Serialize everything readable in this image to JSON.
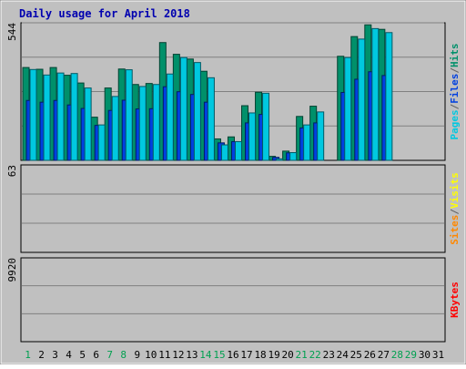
{
  "chart_data": {
    "title": "Daily usage for April 2018",
    "days": [
      "1",
      "2",
      "3",
      "4",
      "5",
      "6",
      "7",
      "8",
      "9",
      "10",
      "11",
      "12",
      "13",
      "14",
      "15",
      "16",
      "17",
      "18",
      "19",
      "20",
      "21",
      "22",
      "23",
      "24",
      "25",
      "26",
      "27",
      "28",
      "29",
      "30",
      "31"
    ],
    "weekend_days": [
      "1",
      "7",
      "8",
      "14",
      "15",
      "21",
      "22",
      "28",
      "29"
    ],
    "panels": [
      {
        "type": "bar",
        "max_label": "544",
        "max": 544,
        "legend": [
          "Pages",
          "Files",
          "Hits"
        ],
        "legend_colors": [
          "#00c8e0",
          "#0040e0",
          "#00906a"
        ],
        "series": [
          {
            "name": "Hits",
            "color": "#00906a",
            "values": [
              372,
              365,
              372,
              341,
              310,
              173,
              290,
              366,
              304,
              308,
              472,
              425,
              406,
              357,
              86,
              94,
              219,
              273,
              16,
              37,
              176,
              217,
              0,
              417,
              496,
              543,
              525,
              0,
              0,
              0,
              0
            ]
          },
          {
            "name": "Files",
            "color": "#0040e0",
            "values": [
              240,
              233,
              240,
              222,
              208,
              140,
              200,
              241,
              206,
              207,
              295,
              275,
              264,
              233,
              70,
              75,
              150,
              184,
              12,
              30,
              130,
              150,
              0,
              272,
              325,
              355,
              340,
              0,
              0,
              0,
              0
            ]
          },
          {
            "name": "Pages",
            "color": "#00c8e0",
            "values": [
              364,
              342,
              350,
              348,
              290,
              142,
              256,
              363,
              296,
              304,
              346,
              412,
              392,
              331,
              62,
              75,
              190,
              269,
              6,
              31,
              142,
              194,
              0,
              412,
              486,
              528,
              512,
              0,
              0,
              0,
              0
            ]
          }
        ]
      },
      {
        "type": "bar",
        "max_label": "63",
        "max": 63,
        "legend": [
          "Sites",
          "/",
          "Visits"
        ],
        "legend_colors": [
          "#ff8800",
          "#606060",
          "#ffff00"
        ],
        "series": [
          {
            "name": "Visits",
            "color": "#ffff00",
            "values": [
              0,
              0,
              0,
              0,
              0,
              0,
              0,
              0,
              0,
              0,
              0,
              0,
              0,
              0,
              0,
              0,
              0,
              0,
              0,
              0,
              0,
              0,
              0,
              0,
              0,
              0,
              0,
              0,
              0,
              0,
              0
            ]
          },
          {
            "name": "Sites",
            "color": "#ff8800",
            "values": [
              0,
              0,
              0,
              0,
              0,
              0,
              0,
              0,
              0,
              0,
              0,
              0,
              0,
              0,
              0,
              0,
              0,
              0,
              0,
              0,
              0,
              0,
              0,
              0,
              0,
              0,
              0,
              0,
              0,
              0,
              0
            ]
          }
        ]
      },
      {
        "type": "bar",
        "max_label": "9920",
        "max": 9920,
        "legend": [
          "KBytes"
        ],
        "legend_colors": [
          "#ff0000"
        ],
        "series": [
          {
            "name": "KBytes",
            "color": "#ff0000",
            "values": [
              0,
              0,
              0,
              0,
              0,
              0,
              0,
              0,
              0,
              0,
              0,
              0,
              0,
              0,
              0,
              0,
              0,
              0,
              0,
              0,
              0,
              0,
              0,
              0,
              0,
              0,
              0,
              0,
              0,
              0,
              0
            ]
          }
        ]
      }
    ]
  }
}
